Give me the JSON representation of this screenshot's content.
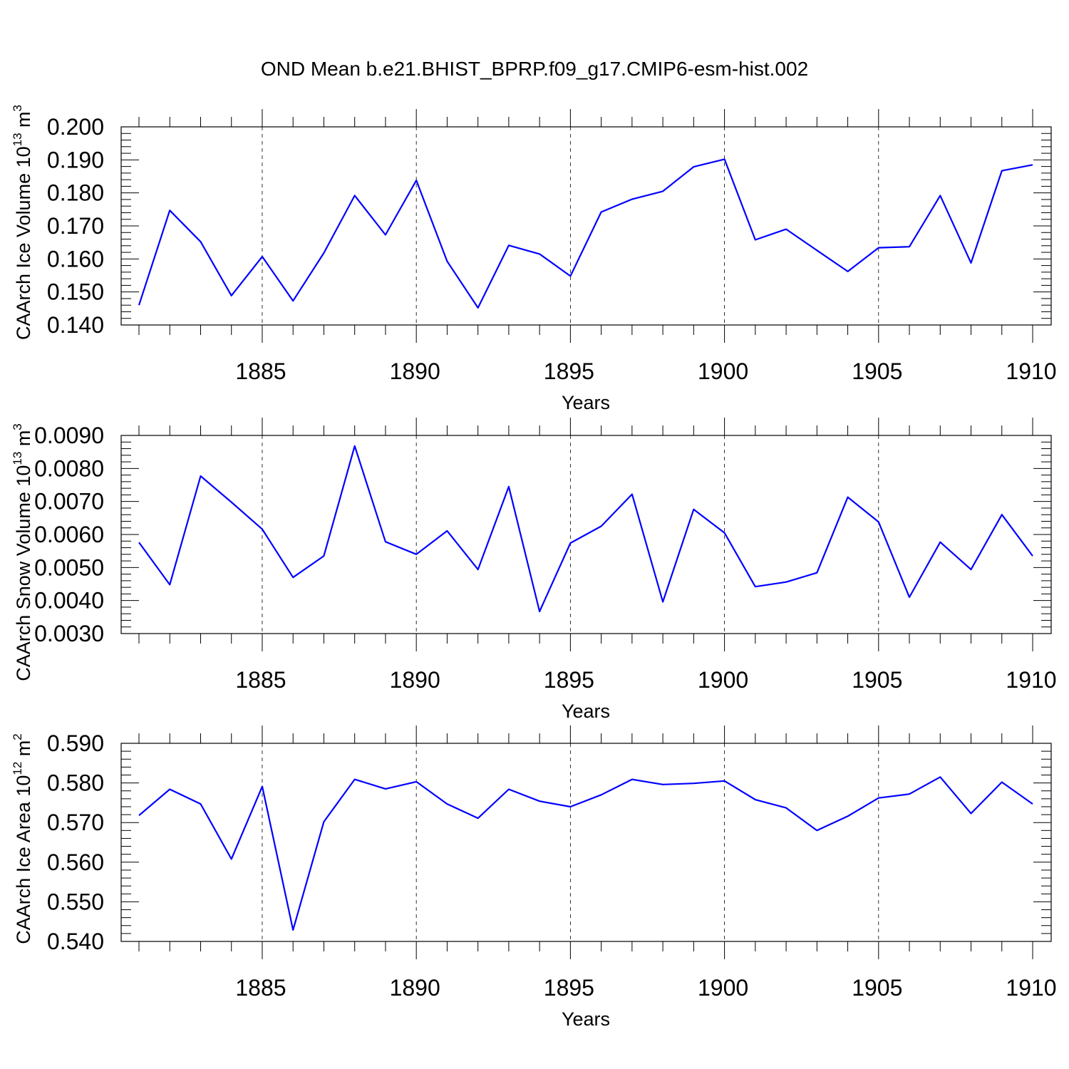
{
  "title": "OND Mean b.e21.BHIST_BPRP.f09_g17.CMIP6-esm-hist.002",
  "colors": {
    "line": "#0000ff",
    "axes": "#000000",
    "background": "#ffffff"
  },
  "chart_data": [
    {
      "type": "line",
      "ylabel_text": "CAArch Ice Volume 10",
      "ylabel_exp": "13",
      "ylabel_unit": " m",
      "ylabel_unit_exp": "3",
      "xlabel": "Years",
      "xlim": [
        1881,
        1910
      ],
      "ylim": [
        0.14,
        0.2
      ],
      "xticks": [
        1885,
        1890,
        1895,
        1900,
        1905,
        1910
      ],
      "xtick_labels": [
        "1885",
        "1890",
        "1895",
        "1900",
        "1905",
        "1910"
      ],
      "yticks": [
        0.14,
        0.15,
        0.16,
        0.17,
        0.18,
        0.19,
        0.2
      ],
      "ytick_labels": [
        "0.140",
        "0.150",
        "0.160",
        "0.170",
        "0.180",
        "0.190",
        "0.200"
      ],
      "x_minor_step": 1,
      "y_minor_step": 0.002,
      "grid": "vertical dashed at major x ticks",
      "x": [
        1881,
        1882,
        1883,
        1884,
        1885,
        1886,
        1887,
        1888,
        1889,
        1890,
        1891,
        1892,
        1893,
        1894,
        1895,
        1896,
        1897,
        1898,
        1899,
        1900,
        1901,
        1902,
        1903,
        1904,
        1905,
        1906,
        1907,
        1908,
        1909,
        1910
      ],
      "values": [
        0.146,
        0.1747,
        0.1652,
        0.1489,
        0.1607,
        0.1473,
        0.1618,
        0.1792,
        0.1673,
        0.1838,
        0.1593,
        0.1452,
        0.1641,
        0.1615,
        0.1548,
        0.1742,
        0.1781,
        0.1805,
        0.1879,
        0.1902,
        0.1658,
        0.169,
        0.1626,
        0.1562,
        0.1634,
        0.1637,
        0.1792,
        0.1588,
        0.1867,
        0.1885
      ]
    },
    {
      "type": "line",
      "ylabel_text": "CAArch Snow Volume 10",
      "ylabel_exp": "13",
      "ylabel_unit": " m",
      "ylabel_unit_exp": "3",
      "xlabel": "Years",
      "xlim": [
        1881,
        1910
      ],
      "ylim": [
        0.003,
        0.009
      ],
      "xticks": [
        1885,
        1890,
        1895,
        1900,
        1905,
        1910
      ],
      "xtick_labels": [
        "1885",
        "1890",
        "1895",
        "1900",
        "1905",
        "1910"
      ],
      "yticks": [
        0.003,
        0.004,
        0.005,
        0.006,
        0.007,
        0.008,
        0.009
      ],
      "ytick_labels": [
        "0.0030",
        "0.0040",
        "0.0050",
        "0.0060",
        "0.0070",
        "0.0080",
        "0.0090"
      ],
      "x_minor_step": 1,
      "y_minor_step": 0.0002,
      "grid": "vertical dashed at major x ticks",
      "x": [
        1881,
        1882,
        1883,
        1884,
        1885,
        1886,
        1887,
        1888,
        1889,
        1890,
        1891,
        1892,
        1893,
        1894,
        1895,
        1896,
        1897,
        1898,
        1899,
        1900,
        1901,
        1902,
        1903,
        1904,
        1905,
        1906,
        1907,
        1908,
        1909,
        1910
      ],
      "values": [
        0.00576,
        0.00448,
        0.00777,
        0.00698,
        0.00616,
        0.0047,
        0.00535,
        0.00868,
        0.00578,
        0.0054,
        0.00611,
        0.00494,
        0.00745,
        0.00367,
        0.00574,
        0.00625,
        0.00722,
        0.00396,
        0.00676,
        0.00605,
        0.00442,
        0.00456,
        0.00484,
        0.00713,
        0.00638,
        0.0041,
        0.00577,
        0.00494,
        0.0066,
        0.00535
      ]
    },
    {
      "type": "line",
      "ylabel_text": "CAArch Ice Area 10",
      "ylabel_exp": "12",
      "ylabel_unit": " m",
      "ylabel_unit_exp": "2",
      "xlabel": "Years",
      "xlim": [
        1881,
        1910
      ],
      "ylim": [
        0.54,
        0.59
      ],
      "xticks": [
        1885,
        1890,
        1895,
        1900,
        1905,
        1910
      ],
      "xtick_labels": [
        "1885",
        "1890",
        "1895",
        "1900",
        "1905",
        "1910"
      ],
      "yticks": [
        0.54,
        0.55,
        0.56,
        0.57,
        0.58,
        0.59
      ],
      "ytick_labels": [
        "0.540",
        "0.550",
        "0.560",
        "0.570",
        "0.580",
        "0.590"
      ],
      "x_minor_step": 1,
      "y_minor_step": 0.002,
      "grid": "vertical dashed at major x ticks",
      "x": [
        1881,
        1882,
        1883,
        1884,
        1885,
        1886,
        1887,
        1888,
        1889,
        1890,
        1891,
        1892,
        1893,
        1894,
        1895,
        1896,
        1897,
        1898,
        1899,
        1900,
        1901,
        1902,
        1903,
        1904,
        1905,
        1906,
        1907,
        1908,
        1909,
        1910
      ],
      "values": [
        0.5718,
        0.5784,
        0.5747,
        0.5608,
        0.5791,
        0.5429,
        0.5702,
        0.5809,
        0.5785,
        0.5803,
        0.5747,
        0.5711,
        0.5784,
        0.5754,
        0.574,
        0.577,
        0.5809,
        0.5796,
        0.5799,
        0.5805,
        0.5758,
        0.5737,
        0.568,
        0.5716,
        0.5762,
        0.5772,
        0.5815,
        0.5723,
        0.5802,
        0.5747
      ]
    }
  ]
}
